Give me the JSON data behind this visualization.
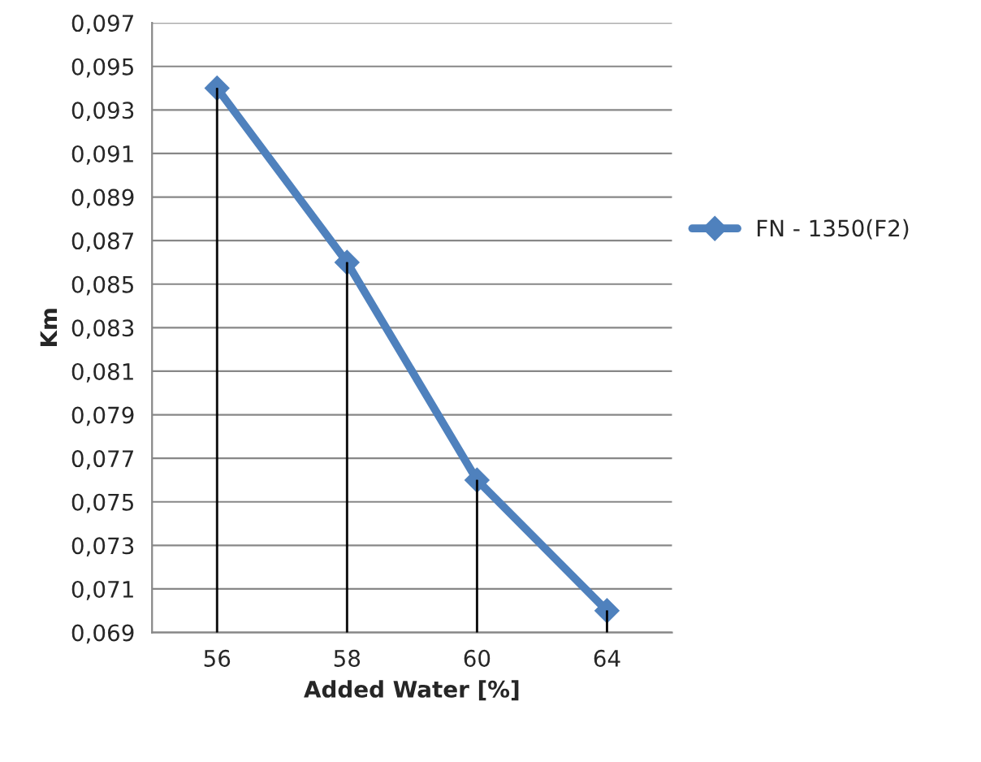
{
  "chart_data": {
    "type": "line",
    "xlabel": "Added Water [%]",
    "ylabel": "Km",
    "categories": [
      "56",
      "58",
      "60",
      "64"
    ],
    "series": [
      {
        "type": "bar",
        "color": "#000000",
        "base": [
          0.069,
          0.069,
          0.069,
          0.069
        ],
        "values": [
          0.025,
          0.017,
          0.007,
          0.001
        ]
      },
      {
        "name": "FN - 1350(F2)",
        "color": "#4f81bd",
        "values": [
          0.094,
          0.086,
          0.076,
          0.07
        ]
      }
    ],
    "ylim": [
      0.069,
      0.097
    ],
    "yticks": [
      {
        "value": 0.069,
        "label": "0,069"
      },
      {
        "value": 0.071,
        "label": "0,071"
      },
      {
        "value": 0.073,
        "label": "0,073"
      },
      {
        "value": 0.075,
        "label": "0,075"
      },
      {
        "value": 0.077,
        "label": "0,077"
      },
      {
        "value": 0.079,
        "label": "0,079"
      },
      {
        "value": 0.081,
        "label": "0,081"
      },
      {
        "value": 0.083,
        "label": "0,083"
      },
      {
        "value": 0.085,
        "label": "0,085"
      },
      {
        "value": 0.087,
        "label": "0,087"
      },
      {
        "value": 0.089,
        "label": "0,089"
      },
      {
        "value": 0.091,
        "label": "0,091"
      },
      {
        "value": 0.093,
        "label": "0,093"
      },
      {
        "value": 0.095,
        "label": "0,095"
      },
      {
        "value": 0.097,
        "label": "0,097"
      }
    ],
    "grid": "y",
    "legend": "right",
    "marker": "diamond",
    "line_style": "solid"
  }
}
